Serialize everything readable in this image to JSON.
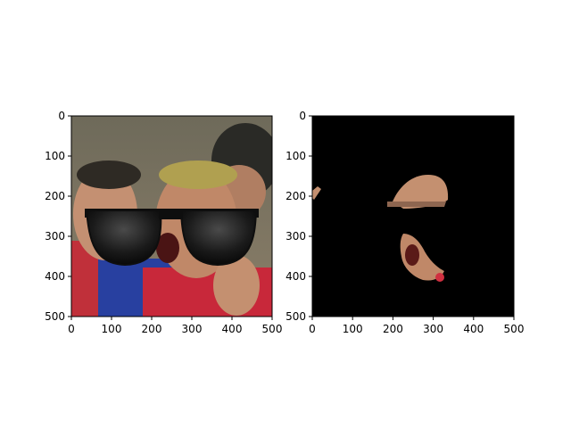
{
  "figure": {
    "background": "#ffffff"
  },
  "chart_data": [
    {
      "type": "image",
      "description": "RGB photo of football players; the man in front wears overlaid black sunglasses",
      "xlim": [
        0,
        500
      ],
      "ylim": [
        500,
        0
      ],
      "x_ticks": [
        0,
        100,
        200,
        300,
        400,
        500
      ],
      "y_ticks": [
        0,
        100,
        200,
        300,
        400,
        500
      ],
      "x_tick_labels": [
        "0",
        "100",
        "200",
        "300",
        "400",
        "500"
      ],
      "y_tick_labels": [
        "0",
        "100",
        "200",
        "300",
        "400",
        "500"
      ],
      "title": "",
      "xlabel": "",
      "ylabel": "",
      "colors": {
        "jersey_red": "#c0303a",
        "jersey_blue": "#2840a0",
        "skin": "#c08868",
        "sunglasses": "#0e0e0e",
        "crowd": "#707060"
      }
    },
    {
      "type": "image",
      "description": "Masked image: black background with only face-skin regions visible",
      "xlim": [
        0,
        500
      ],
      "ylim": [
        500,
        0
      ],
      "x_ticks": [
        0,
        100,
        200,
        300,
        400,
        500
      ],
      "y_ticks": [
        0,
        100,
        200,
        300,
        400,
        500
      ],
      "x_tick_labels": [
        "0",
        "100",
        "200",
        "300",
        "400",
        "500"
      ],
      "y_tick_labels": [
        "0",
        "100",
        "200",
        "300",
        "400",
        "500"
      ],
      "title": "",
      "xlabel": "",
      "ylabel": "",
      "colors": {
        "background": "#000000",
        "skin": "#c49070",
        "mouth": "#5a1a18",
        "red_blob": "#d03040"
      }
    }
  ]
}
